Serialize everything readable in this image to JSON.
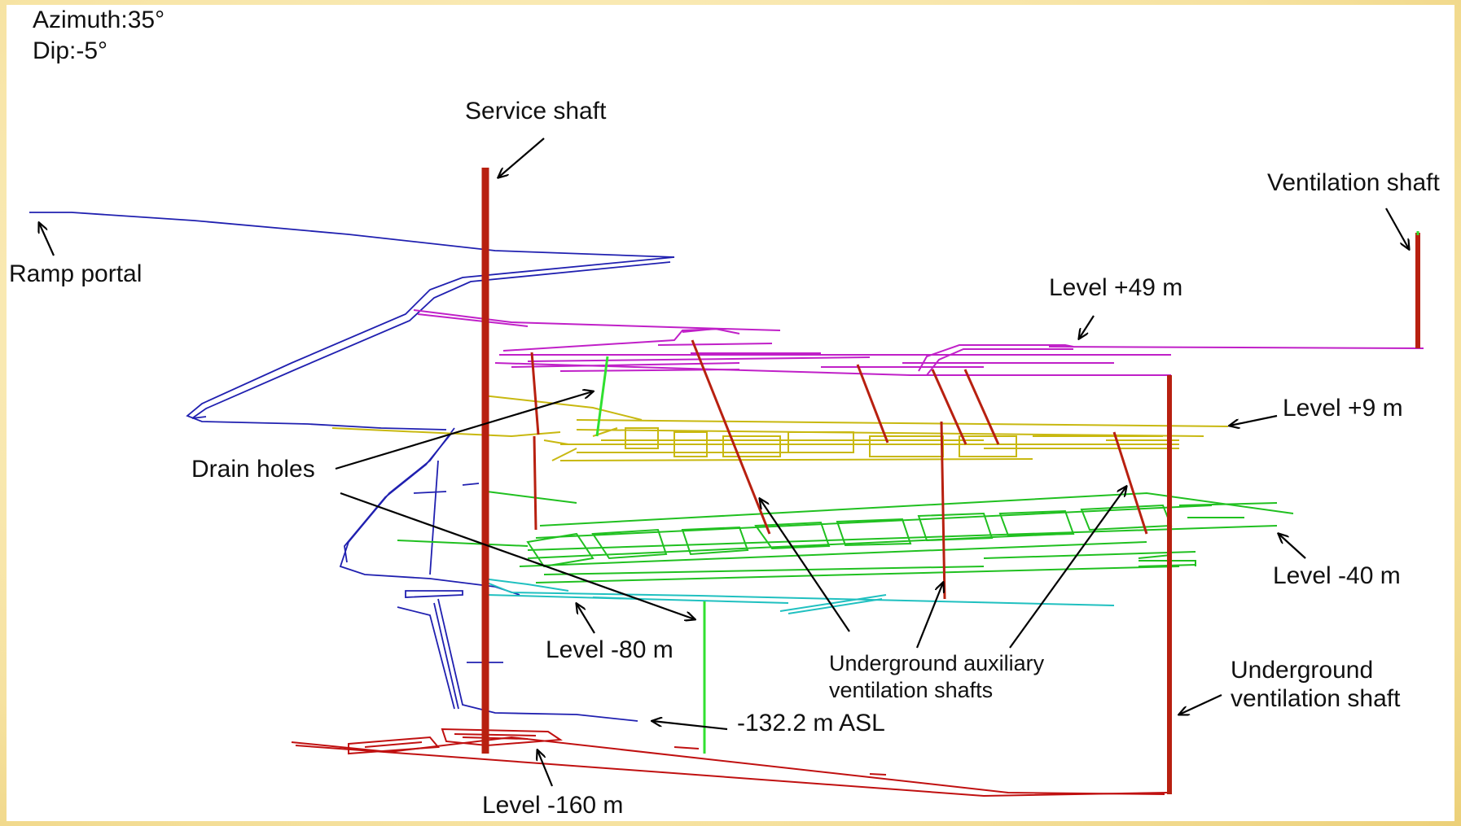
{
  "view": {
    "azimuth": "Azimuth:35°",
    "dip": "Dip:-5°"
  },
  "labels": {
    "service_shaft": "Service shaft",
    "ventilation_shaft": "Ventilation shaft",
    "ramp_portal": "Ramp portal",
    "level_plus49": "Level +49 m",
    "level_plus9": "Level +9 m",
    "drain_holes": "Drain holes",
    "level_minus40": "Level -40 m",
    "level_minus80": "Level -80 m",
    "aux_shafts_line1": "Underground auxiliary",
    "aux_shafts_line2": "ventilation shafts",
    "ug_vent_line1": "Underground",
    "ug_vent_line2": "ventilation shaft",
    "asl": "-132.2 m ASL",
    "level_minus160": "Level -160 m"
  },
  "colors": {
    "ramp": "#2020b0",
    "level_plus49": "#c020c8",
    "level_plus9": "#c8b810",
    "level_minus40": "#20c020",
    "level_minus80": "#20c0c0",
    "level_minus160": "#c01010",
    "shafts": "#b82010",
    "drain_holes": "#30e030"
  }
}
